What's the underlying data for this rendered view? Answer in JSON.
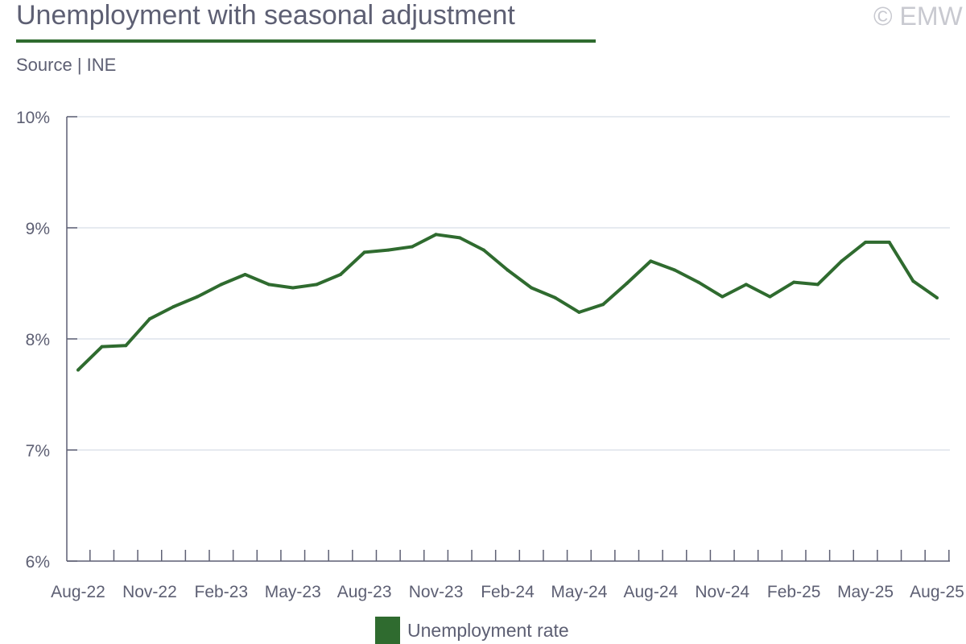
{
  "header": {
    "title": "Unemployment with seasonal adjustment",
    "source": "Source | INE",
    "copyright": "© EMW"
  },
  "colors": {
    "line": "#2f6b2f",
    "grid": "#dde3ec",
    "axis": "#5d5f73"
  },
  "chart_data": {
    "type": "line",
    "title": "Unemployment with seasonal adjustment",
    "xlabel": "",
    "ylabel": "",
    "ylim": [
      6,
      10
    ],
    "yticks": [
      6,
      7,
      8,
      9,
      10
    ],
    "ytick_labels": [
      "6%",
      "7%",
      "8%",
      "9%",
      "10%"
    ],
    "grid": true,
    "legend_position": "bottom",
    "x": [
      "Aug-22",
      "Sep-22",
      "Oct-22",
      "Nov-22",
      "Dec-22",
      "Jan-23",
      "Feb-23",
      "Mar-23",
      "Apr-23",
      "May-23",
      "Jun-23",
      "Jul-23",
      "Aug-23",
      "Sep-23",
      "Oct-23",
      "Nov-23",
      "Dec-23",
      "Jan-24",
      "Feb-24",
      "Mar-24",
      "Apr-24",
      "May-24",
      "Jun-24",
      "Jul-24",
      "Aug-24",
      "Sep-24",
      "Oct-24",
      "Nov-24",
      "Dec-24",
      "Jan-25",
      "Feb-25",
      "Mar-25",
      "Apr-25",
      "May-25",
      "Jun-25",
      "Jul-25",
      "Aug-25"
    ],
    "xtick_labels": [
      "Aug-22",
      "Nov-22",
      "Feb-23",
      "May-23",
      "Aug-23",
      "Nov-23",
      "Feb-24",
      "May-24",
      "Aug-24",
      "Nov-24",
      "Feb-25",
      "May-25",
      "Aug-25"
    ],
    "series": [
      {
        "name": "Unemployment rate",
        "values": [
          7.72,
          7.93,
          7.94,
          8.18,
          8.29,
          8.38,
          8.49,
          8.58,
          8.49,
          8.46,
          8.49,
          8.58,
          8.78,
          8.8,
          8.83,
          8.94,
          8.91,
          8.8,
          8.62,
          8.46,
          8.37,
          8.24,
          8.31,
          8.5,
          8.7,
          8.62,
          8.51,
          8.38,
          8.49,
          8.38,
          8.51,
          8.49,
          8.7,
          8.87,
          8.87,
          8.52,
          8.37
        ]
      }
    ]
  }
}
